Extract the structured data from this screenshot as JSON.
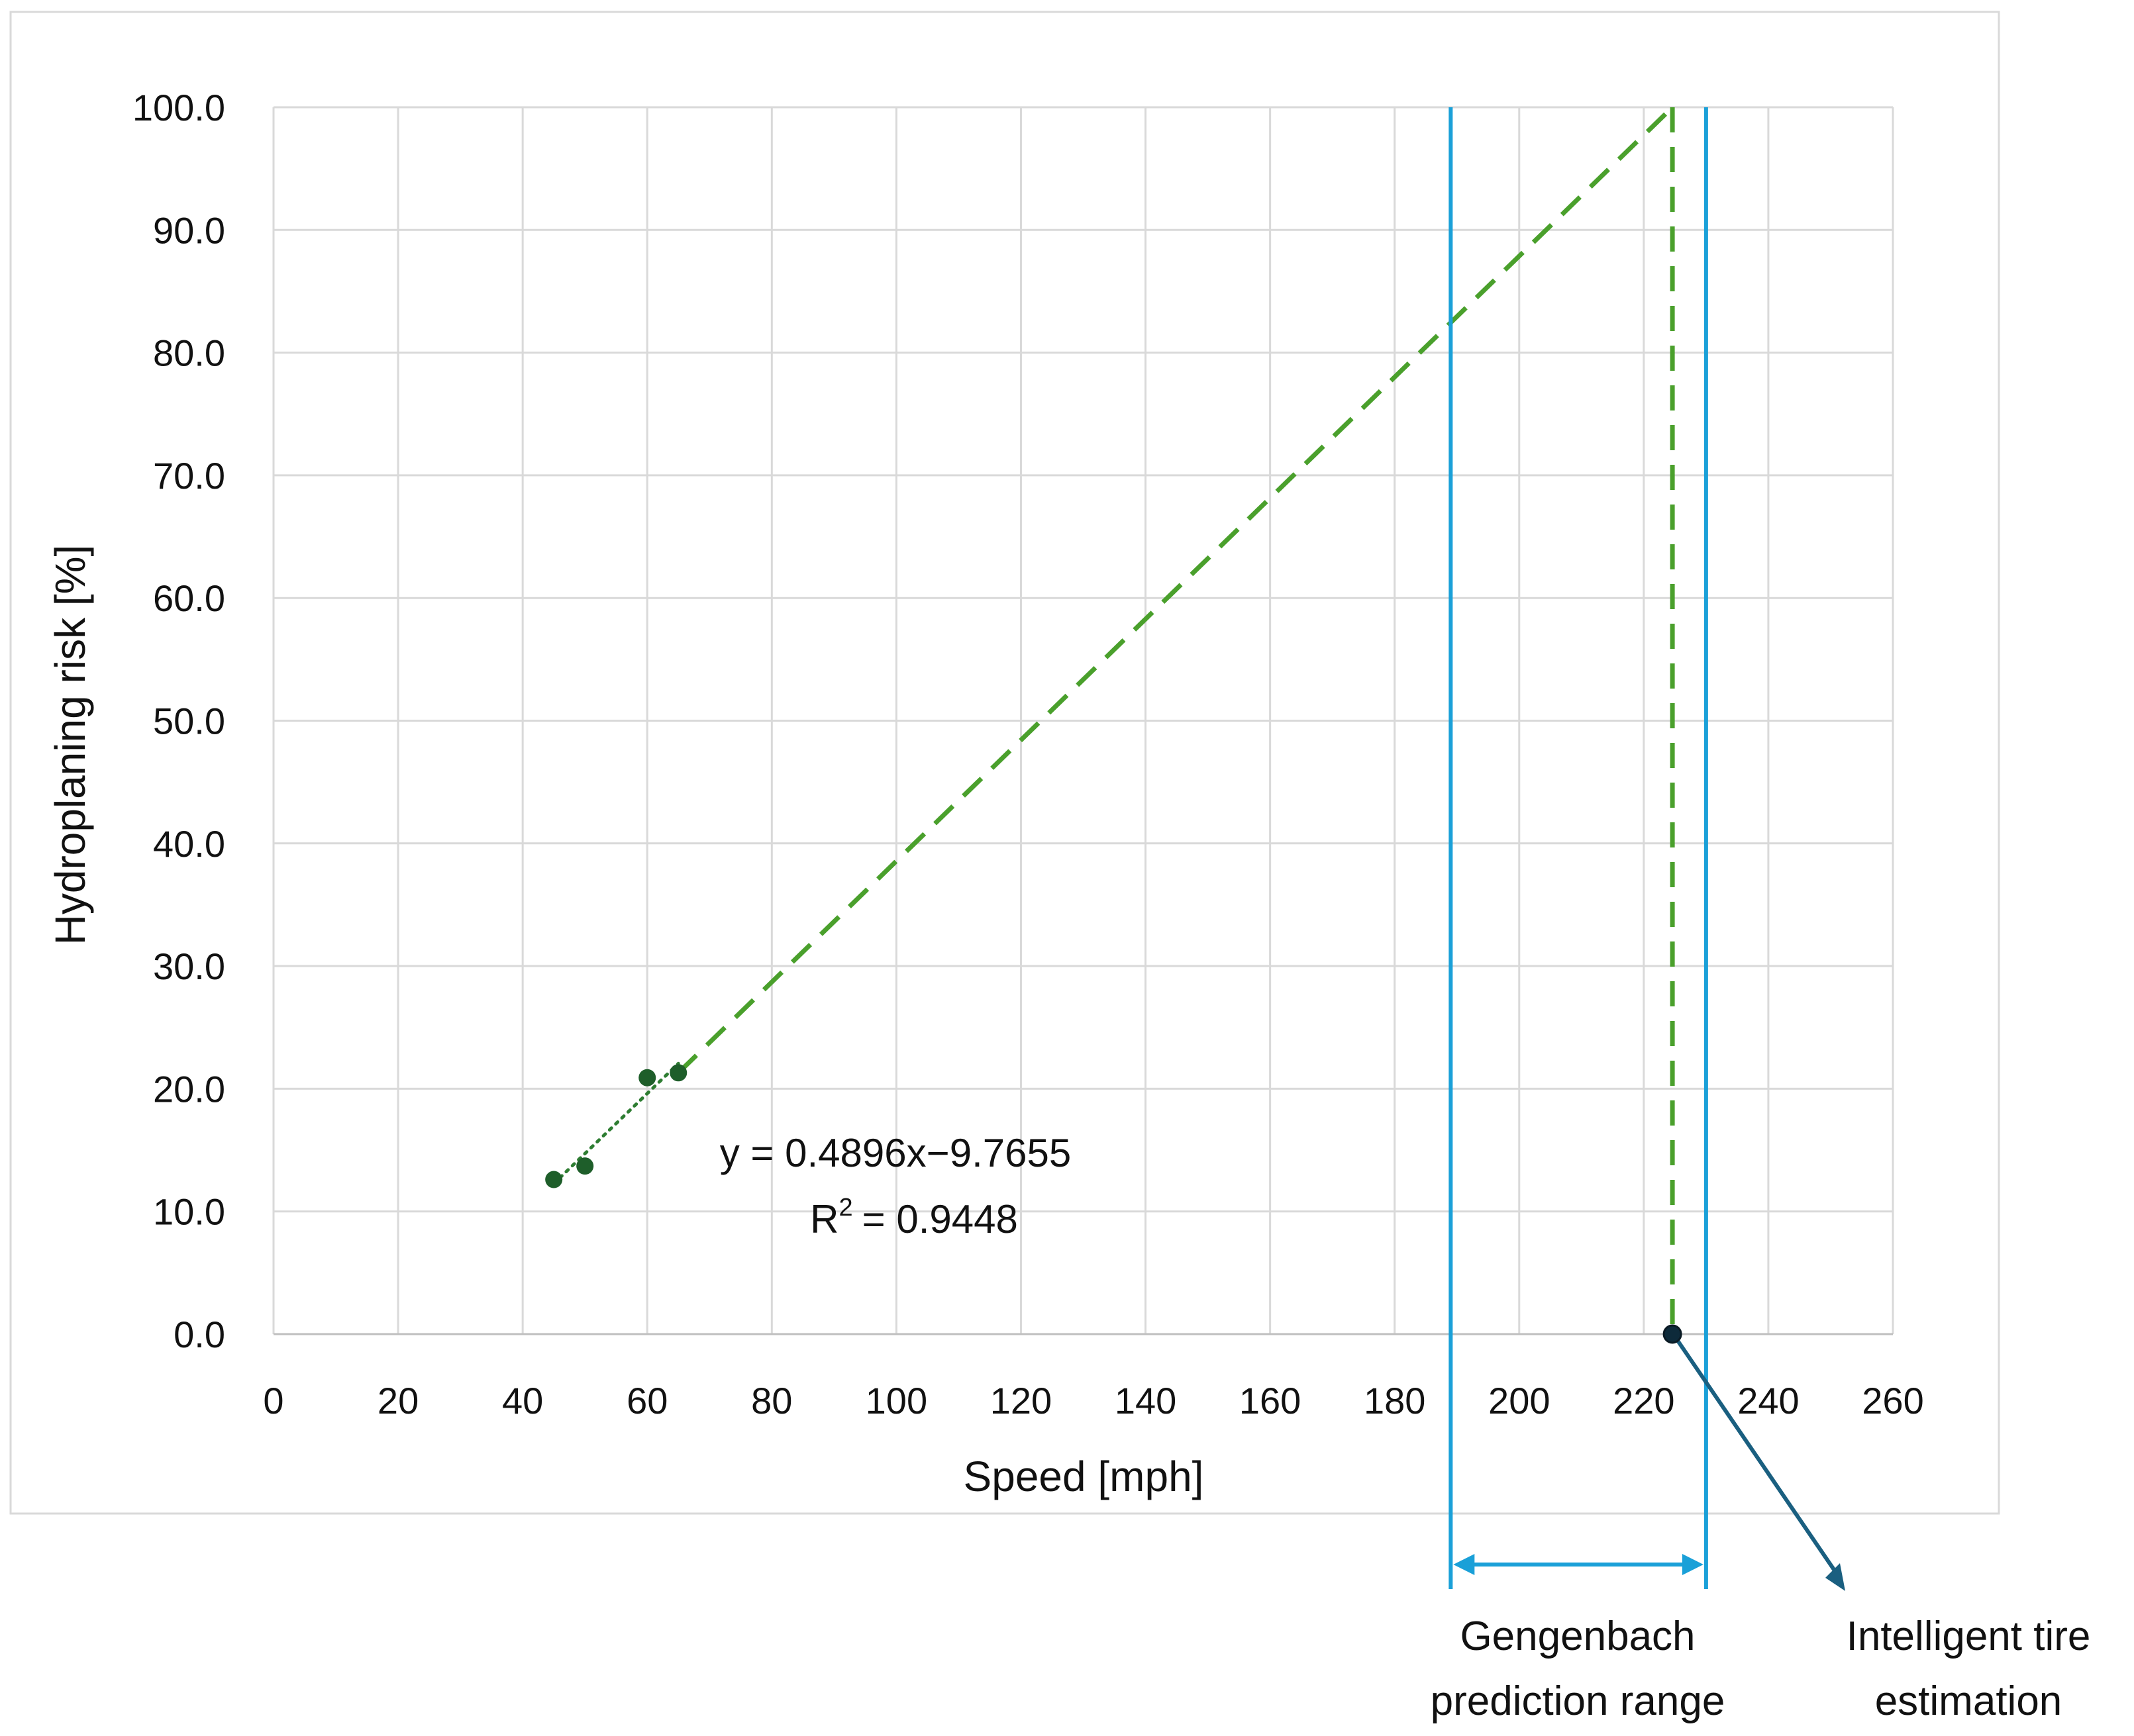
{
  "chart_data": {
    "type": "scatter",
    "xlabel": "Speed [mph]",
    "ylabel": "Hydroplaning risk [%]",
    "xlim": [
      0,
      260
    ],
    "ylim": [
      0,
      100
    ],
    "x_ticks": [
      "0",
      "20",
      "40",
      "60",
      "80",
      "100",
      "120",
      "140",
      "160",
      "180",
      "200",
      "220",
      "240",
      "260"
    ],
    "y_ticks": [
      "0.0",
      "10.0",
      "20.0",
      "30.0",
      "40.0",
      "50.0",
      "60.0",
      "70.0",
      "80.0",
      "90.0",
      "100.0"
    ],
    "grid": true,
    "series": [
      {
        "points": [
          {
            "x": 45,
            "y": 12.6
          },
          {
            "x": 50,
            "y": 13.7
          },
          {
            "x": 60,
            "y": 20.9
          },
          {
            "x": 65,
            "y": 21.3
          }
        ],
        "color": "#1e5e2a",
        "trendline": {
          "type": "linear",
          "slope": 0.4896,
          "intercept": -9.7655,
          "equation": "y = 0.4896x−9.7655",
          "r2_text": "= 0.9448",
          "r2_label": "R",
          "r2_sup": "2",
          "style": "dotted",
          "color": "#2e7d32"
        }
      }
    ],
    "extrapolation": {
      "from": {
        "x": 65,
        "y": 21.3
      },
      "to": {
        "x": 224.6,
        "y": 100
      },
      "drop_to": {
        "x": 224.6,
        "y": 0
      },
      "color": "#4aa02c",
      "style": "dashed"
    },
    "intelligent_tire_point": {
      "x": 224.6,
      "y": 0,
      "color": "#0d2a3a"
    },
    "gengenbach_range": {
      "x_min": 189,
      "x_max": 230,
      "color": "#1aa0d8"
    },
    "annotations": {
      "gengenbach_line1": "Gengenbach",
      "gengenbach_line2": "prediction range",
      "tire_line1": "Intelligent tire",
      "tire_line2": "estimation"
    },
    "arrow_color": "#1a5f80"
  }
}
